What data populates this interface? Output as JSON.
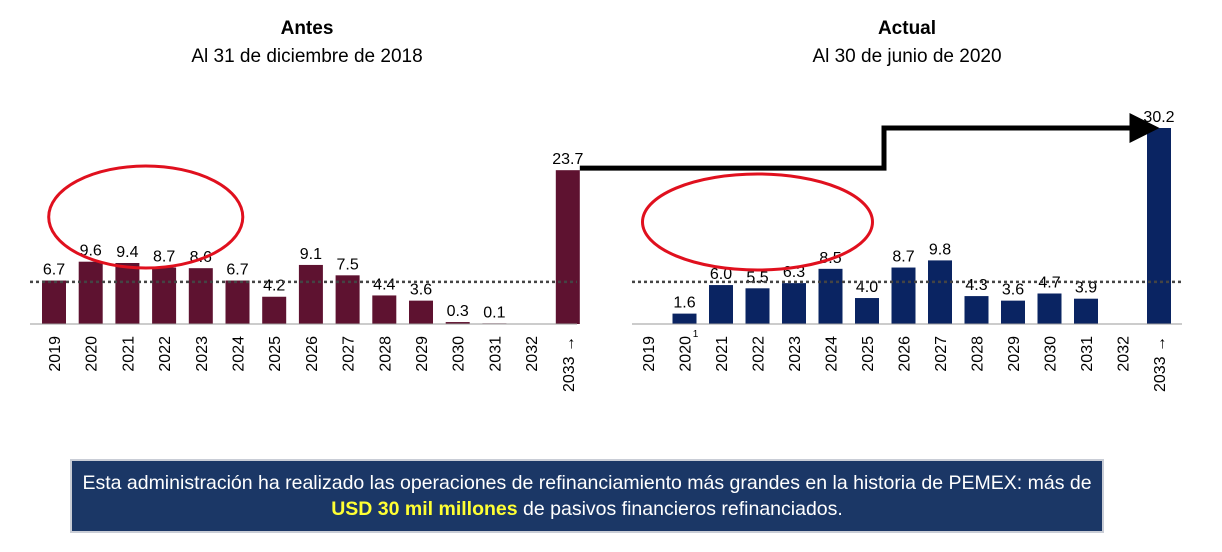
{
  "colors": {
    "antes_bar": "#5e1230",
    "actual_bar": "#0a2462",
    "ellipse": "#e0101e",
    "arrow": "#000000",
    "dotted_line": "#444444"
  },
  "chart_data": [
    {
      "type": "bar",
      "title": "Antes",
      "subtitle": "Al 31 de diciembre de 2018",
      "categories": [
        "2019",
        "2020",
        "2021",
        "2022",
        "2023",
        "2024",
        "2025",
        "2026",
        "2027",
        "2028",
        "2029",
        "2030",
        "2031",
        "2032",
        "2033 →"
      ],
      "values": [
        6.7,
        9.6,
        9.4,
        8.7,
        8.6,
        6.7,
        4.2,
        9.1,
        7.5,
        4.4,
        3.6,
        0.3,
        0.1,
        null,
        23.7
      ],
      "value_labels": [
        "6.7",
        "9.6",
        "9.4",
        "8.7",
        "8.6",
        "6.7",
        "4.2",
        "9.1",
        "7.5",
        "4.4",
        "3.6",
        "0.3",
        "0.1",
        "",
        "23.7"
      ],
      "xlabel": "",
      "ylabel": "",
      "ylim": [
        0,
        30.2
      ],
      "reference_line": 6.5,
      "grid": false,
      "color": "#5e1230",
      "highlight": [
        "2020",
        "2023"
      ]
    },
    {
      "type": "bar",
      "title": "Actual",
      "subtitle": "Al 30 de junio de 2020",
      "categories": [
        "2019",
        "2020",
        "2021",
        "2022",
        "2023",
        "2024",
        "2025",
        "2026",
        "2027",
        "2028",
        "2029",
        "2030",
        "2031",
        "2032",
        "2033 →"
      ],
      "category_superscripts": [
        "",
        "1",
        "",
        "",
        "",
        "",
        "",
        "",
        "",
        "",
        "",
        "",
        "",
        "",
        ""
      ],
      "values": [
        null,
        1.6,
        6.0,
        5.5,
        6.3,
        8.5,
        4.0,
        8.7,
        9.8,
        4.3,
        3.6,
        4.7,
        3.9,
        null,
        30.2
      ],
      "value_labels": [
        "",
        "1.6",
        "6.0",
        "5.5",
        "6.3",
        "8.5",
        "4.0",
        "8.7",
        "9.8",
        "4.3",
        "3.6",
        "4.7",
        "3.9",
        "",
        "30.2"
      ],
      "xlabel": "",
      "ylabel": "",
      "ylim": [
        0,
        30.2
      ],
      "reference_line": 6.5,
      "grid": false,
      "color": "#0a2462",
      "highlight": [
        "2020",
        "2024"
      ]
    }
  ],
  "banner": {
    "text_before": "Esta administración ha realizado las operaciones de refinanciamiento más grandes en la historia de PEMEX: más de ",
    "highlight": "USD 30 mil millones",
    "text_after": " de pasivos financieros refinanciados."
  }
}
